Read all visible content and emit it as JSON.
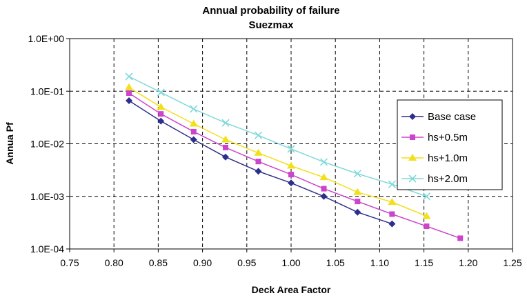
{
  "chart_data": {
    "type": "line",
    "title": "Annual probability of failure",
    "subtitle": "Suezmax",
    "xlabel": "Deck Area Factor",
    "ylabel": "Annua Pf",
    "xlim": [
      0.75,
      1.25
    ],
    "ylim": [
      0.0001,
      1.0
    ],
    "yscale": "log",
    "grid": true,
    "legend_position": "right",
    "x_ticks": [
      "0.75",
      "0.80",
      "0.85",
      "0.90",
      "0.95",
      "1.00",
      "1.05",
      "1.10",
      "1.15",
      "1.20",
      "1.25"
    ],
    "y_ticks": [
      "1.0E-04",
      "1.0E-03",
      "1.0E-02",
      "1.0E-01",
      "1.0E+00"
    ],
    "series": [
      {
        "name": "Base case",
        "color": "#2e2f8c",
        "marker": "diamond",
        "x": [
          0.817,
          0.853,
          0.89,
          0.926,
          0.963,
          1.0,
          1.037,
          1.075,
          1.114
        ],
        "y": [
          0.066,
          0.027,
          0.012,
          0.0056,
          0.003,
          0.0018,
          0.001,
          0.0005,
          0.0003
        ]
      },
      {
        "name": "hs+0.5m",
        "color": "#cc44cc",
        "marker": "square",
        "x": [
          0.817,
          0.853,
          0.89,
          0.926,
          0.963,
          1.0,
          1.037,
          1.075,
          1.114,
          1.153,
          1.191
        ],
        "y": [
          0.092,
          0.037,
          0.017,
          0.0085,
          0.0046,
          0.0026,
          0.0014,
          0.0008,
          0.00046,
          0.00027,
          0.00016
        ]
      },
      {
        "name": "hs+1.0m",
        "color": "#f2e01a",
        "marker": "triangle",
        "x": [
          0.817,
          0.853,
          0.89,
          0.926,
          0.963,
          1.0,
          1.037,
          1.075,
          1.114,
          1.153
        ],
        "y": [
          0.118,
          0.05,
          0.024,
          0.012,
          0.0067,
          0.0038,
          0.0023,
          0.0012,
          0.00078,
          0.00042
        ]
      },
      {
        "name": "hs+2.0m",
        "color": "#7fd8d8",
        "marker": "x",
        "x": [
          0.817,
          0.853,
          0.89,
          0.926,
          0.963,
          1.0,
          1.037,
          1.075,
          1.114,
          1.153
        ],
        "y": [
          0.19,
          0.095,
          0.046,
          0.025,
          0.0145,
          0.008,
          0.0045,
          0.0027,
          0.0017,
          0.001
        ]
      }
    ]
  }
}
